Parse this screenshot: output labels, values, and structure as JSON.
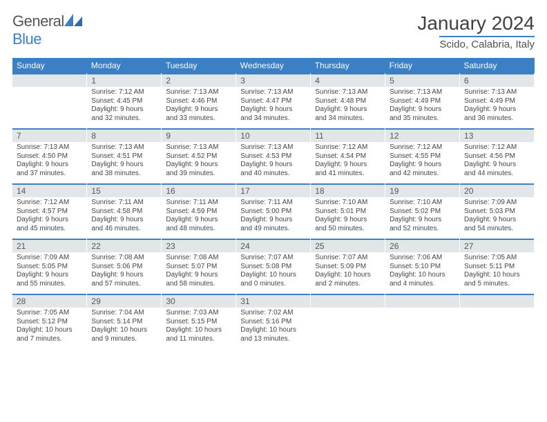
{
  "brand": {
    "part1": "General",
    "part2": "Blue"
  },
  "title": "January 2024",
  "subtitle": "Scido, Calabria, Italy",
  "colors": {
    "accent": "#3b7fc4",
    "header_row_bg": "#3b7fc4",
    "header_row_text": "#ffffff",
    "daynum_bg": "#e3e6e8",
    "daynum_text": "#555555",
    "body_text": "#444444",
    "background": "#ffffff"
  },
  "typography": {
    "title_fontsize": 28,
    "subtitle_fontsize": 15,
    "weekday_fontsize": 12,
    "daynum_fontsize": 12,
    "cell_fontsize": 10
  },
  "weekdays": [
    "Sunday",
    "Monday",
    "Tuesday",
    "Wednesday",
    "Thursday",
    "Friday",
    "Saturday"
  ],
  "weeks": [
    [
      {
        "num": "",
        "sunrise": "",
        "sunset": "",
        "daylight1": "",
        "daylight2": ""
      },
      {
        "num": "1",
        "sunrise": "Sunrise: 7:12 AM",
        "sunset": "Sunset: 4:45 PM",
        "daylight1": "Daylight: 9 hours",
        "daylight2": "and 32 minutes."
      },
      {
        "num": "2",
        "sunrise": "Sunrise: 7:13 AM",
        "sunset": "Sunset: 4:46 PM",
        "daylight1": "Daylight: 9 hours",
        "daylight2": "and 33 minutes."
      },
      {
        "num": "3",
        "sunrise": "Sunrise: 7:13 AM",
        "sunset": "Sunset: 4:47 PM",
        "daylight1": "Daylight: 9 hours",
        "daylight2": "and 34 minutes."
      },
      {
        "num": "4",
        "sunrise": "Sunrise: 7:13 AM",
        "sunset": "Sunset: 4:48 PM",
        "daylight1": "Daylight: 9 hours",
        "daylight2": "and 34 minutes."
      },
      {
        "num": "5",
        "sunrise": "Sunrise: 7:13 AM",
        "sunset": "Sunset: 4:49 PM",
        "daylight1": "Daylight: 9 hours",
        "daylight2": "and 35 minutes."
      },
      {
        "num": "6",
        "sunrise": "Sunrise: 7:13 AM",
        "sunset": "Sunset: 4:49 PM",
        "daylight1": "Daylight: 9 hours",
        "daylight2": "and 36 minutes."
      }
    ],
    [
      {
        "num": "7",
        "sunrise": "Sunrise: 7:13 AM",
        "sunset": "Sunset: 4:50 PM",
        "daylight1": "Daylight: 9 hours",
        "daylight2": "and 37 minutes."
      },
      {
        "num": "8",
        "sunrise": "Sunrise: 7:13 AM",
        "sunset": "Sunset: 4:51 PM",
        "daylight1": "Daylight: 9 hours",
        "daylight2": "and 38 minutes."
      },
      {
        "num": "9",
        "sunrise": "Sunrise: 7:13 AM",
        "sunset": "Sunset: 4:52 PM",
        "daylight1": "Daylight: 9 hours",
        "daylight2": "and 39 minutes."
      },
      {
        "num": "10",
        "sunrise": "Sunrise: 7:13 AM",
        "sunset": "Sunset: 4:53 PM",
        "daylight1": "Daylight: 9 hours",
        "daylight2": "and 40 minutes."
      },
      {
        "num": "11",
        "sunrise": "Sunrise: 7:12 AM",
        "sunset": "Sunset: 4:54 PM",
        "daylight1": "Daylight: 9 hours",
        "daylight2": "and 41 minutes."
      },
      {
        "num": "12",
        "sunrise": "Sunrise: 7:12 AM",
        "sunset": "Sunset: 4:55 PM",
        "daylight1": "Daylight: 9 hours",
        "daylight2": "and 42 minutes."
      },
      {
        "num": "13",
        "sunrise": "Sunrise: 7:12 AM",
        "sunset": "Sunset: 4:56 PM",
        "daylight1": "Daylight: 9 hours",
        "daylight2": "and 44 minutes."
      }
    ],
    [
      {
        "num": "14",
        "sunrise": "Sunrise: 7:12 AM",
        "sunset": "Sunset: 4:57 PM",
        "daylight1": "Daylight: 9 hours",
        "daylight2": "and 45 minutes."
      },
      {
        "num": "15",
        "sunrise": "Sunrise: 7:11 AM",
        "sunset": "Sunset: 4:58 PM",
        "daylight1": "Daylight: 9 hours",
        "daylight2": "and 46 minutes."
      },
      {
        "num": "16",
        "sunrise": "Sunrise: 7:11 AM",
        "sunset": "Sunset: 4:59 PM",
        "daylight1": "Daylight: 9 hours",
        "daylight2": "and 48 minutes."
      },
      {
        "num": "17",
        "sunrise": "Sunrise: 7:11 AM",
        "sunset": "Sunset: 5:00 PM",
        "daylight1": "Daylight: 9 hours",
        "daylight2": "and 49 minutes."
      },
      {
        "num": "18",
        "sunrise": "Sunrise: 7:10 AM",
        "sunset": "Sunset: 5:01 PM",
        "daylight1": "Daylight: 9 hours",
        "daylight2": "and 50 minutes."
      },
      {
        "num": "19",
        "sunrise": "Sunrise: 7:10 AM",
        "sunset": "Sunset: 5:02 PM",
        "daylight1": "Daylight: 9 hours",
        "daylight2": "and 52 minutes."
      },
      {
        "num": "20",
        "sunrise": "Sunrise: 7:09 AM",
        "sunset": "Sunset: 5:03 PM",
        "daylight1": "Daylight: 9 hours",
        "daylight2": "and 54 minutes."
      }
    ],
    [
      {
        "num": "21",
        "sunrise": "Sunrise: 7:09 AM",
        "sunset": "Sunset: 5:05 PM",
        "daylight1": "Daylight: 9 hours",
        "daylight2": "and 55 minutes."
      },
      {
        "num": "22",
        "sunrise": "Sunrise: 7:08 AM",
        "sunset": "Sunset: 5:06 PM",
        "daylight1": "Daylight: 9 hours",
        "daylight2": "and 57 minutes."
      },
      {
        "num": "23",
        "sunrise": "Sunrise: 7:08 AM",
        "sunset": "Sunset: 5:07 PM",
        "daylight1": "Daylight: 9 hours",
        "daylight2": "and 58 minutes."
      },
      {
        "num": "24",
        "sunrise": "Sunrise: 7:07 AM",
        "sunset": "Sunset: 5:08 PM",
        "daylight1": "Daylight: 10 hours",
        "daylight2": "and 0 minutes."
      },
      {
        "num": "25",
        "sunrise": "Sunrise: 7:07 AM",
        "sunset": "Sunset: 5:09 PM",
        "daylight1": "Daylight: 10 hours",
        "daylight2": "and 2 minutes."
      },
      {
        "num": "26",
        "sunrise": "Sunrise: 7:06 AM",
        "sunset": "Sunset: 5:10 PM",
        "daylight1": "Daylight: 10 hours",
        "daylight2": "and 4 minutes."
      },
      {
        "num": "27",
        "sunrise": "Sunrise: 7:05 AM",
        "sunset": "Sunset: 5:11 PM",
        "daylight1": "Daylight: 10 hours",
        "daylight2": "and 5 minutes."
      }
    ],
    [
      {
        "num": "28",
        "sunrise": "Sunrise: 7:05 AM",
        "sunset": "Sunset: 5:12 PM",
        "daylight1": "Daylight: 10 hours",
        "daylight2": "and 7 minutes."
      },
      {
        "num": "29",
        "sunrise": "Sunrise: 7:04 AM",
        "sunset": "Sunset: 5:14 PM",
        "daylight1": "Daylight: 10 hours",
        "daylight2": "and 9 minutes."
      },
      {
        "num": "30",
        "sunrise": "Sunrise: 7:03 AM",
        "sunset": "Sunset: 5:15 PM",
        "daylight1": "Daylight: 10 hours",
        "daylight2": "and 11 minutes."
      },
      {
        "num": "31",
        "sunrise": "Sunrise: 7:02 AM",
        "sunset": "Sunset: 5:16 PM",
        "daylight1": "Daylight: 10 hours",
        "daylight2": "and 13 minutes."
      },
      {
        "num": "",
        "sunrise": "",
        "sunset": "",
        "daylight1": "",
        "daylight2": ""
      },
      {
        "num": "",
        "sunrise": "",
        "sunset": "",
        "daylight1": "",
        "daylight2": ""
      },
      {
        "num": "",
        "sunrise": "",
        "sunset": "",
        "daylight1": "",
        "daylight2": ""
      }
    ]
  ]
}
